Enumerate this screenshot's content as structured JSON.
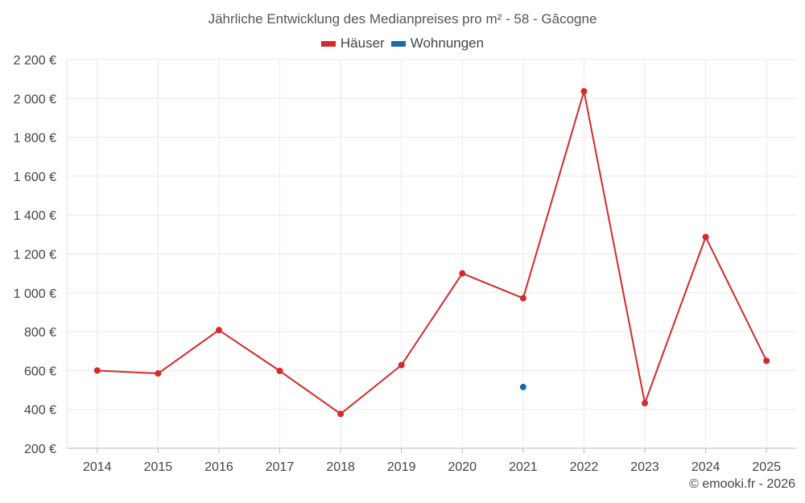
{
  "chart_data": {
    "type": "line",
    "title": "Jährliche Entwicklung des Medianpreises pro m² - 58 - Gâcogne",
    "categories": [
      "2014",
      "2015",
      "2016",
      "2017",
      "2018",
      "2019",
      "2020",
      "2021",
      "2022",
      "2023",
      "2024",
      "2025"
    ],
    "series": [
      {
        "name": "Häuser",
        "color": "#d42a2a",
        "values": [
          600,
          585,
          808,
          598,
          377,
          628,
          1100,
          972,
          2037,
          432,
          1287,
          650
        ]
      },
      {
        "name": "Wohnungen",
        "color": "#1a6aa6",
        "values": [
          null,
          null,
          null,
          null,
          null,
          null,
          null,
          515,
          null,
          null,
          null,
          null
        ]
      }
    ],
    "ylim": [
      200,
      2200
    ],
    "yticks": [
      200,
      400,
      600,
      800,
      1000,
      1200,
      1400,
      1600,
      1800,
      2000,
      2200
    ],
    "ytick_labels": [
      "200 €",
      "400 €",
      "600 €",
      "800 €",
      "1 000 €",
      "1 200 €",
      "1 400 €",
      "1 600 €",
      "1 800 €",
      "2 000 €",
      "2 200 €"
    ],
    "xlabel": "",
    "ylabel": "",
    "grid": true,
    "legend_position": "top-center"
  },
  "credit": "© emooki.fr - 2026"
}
